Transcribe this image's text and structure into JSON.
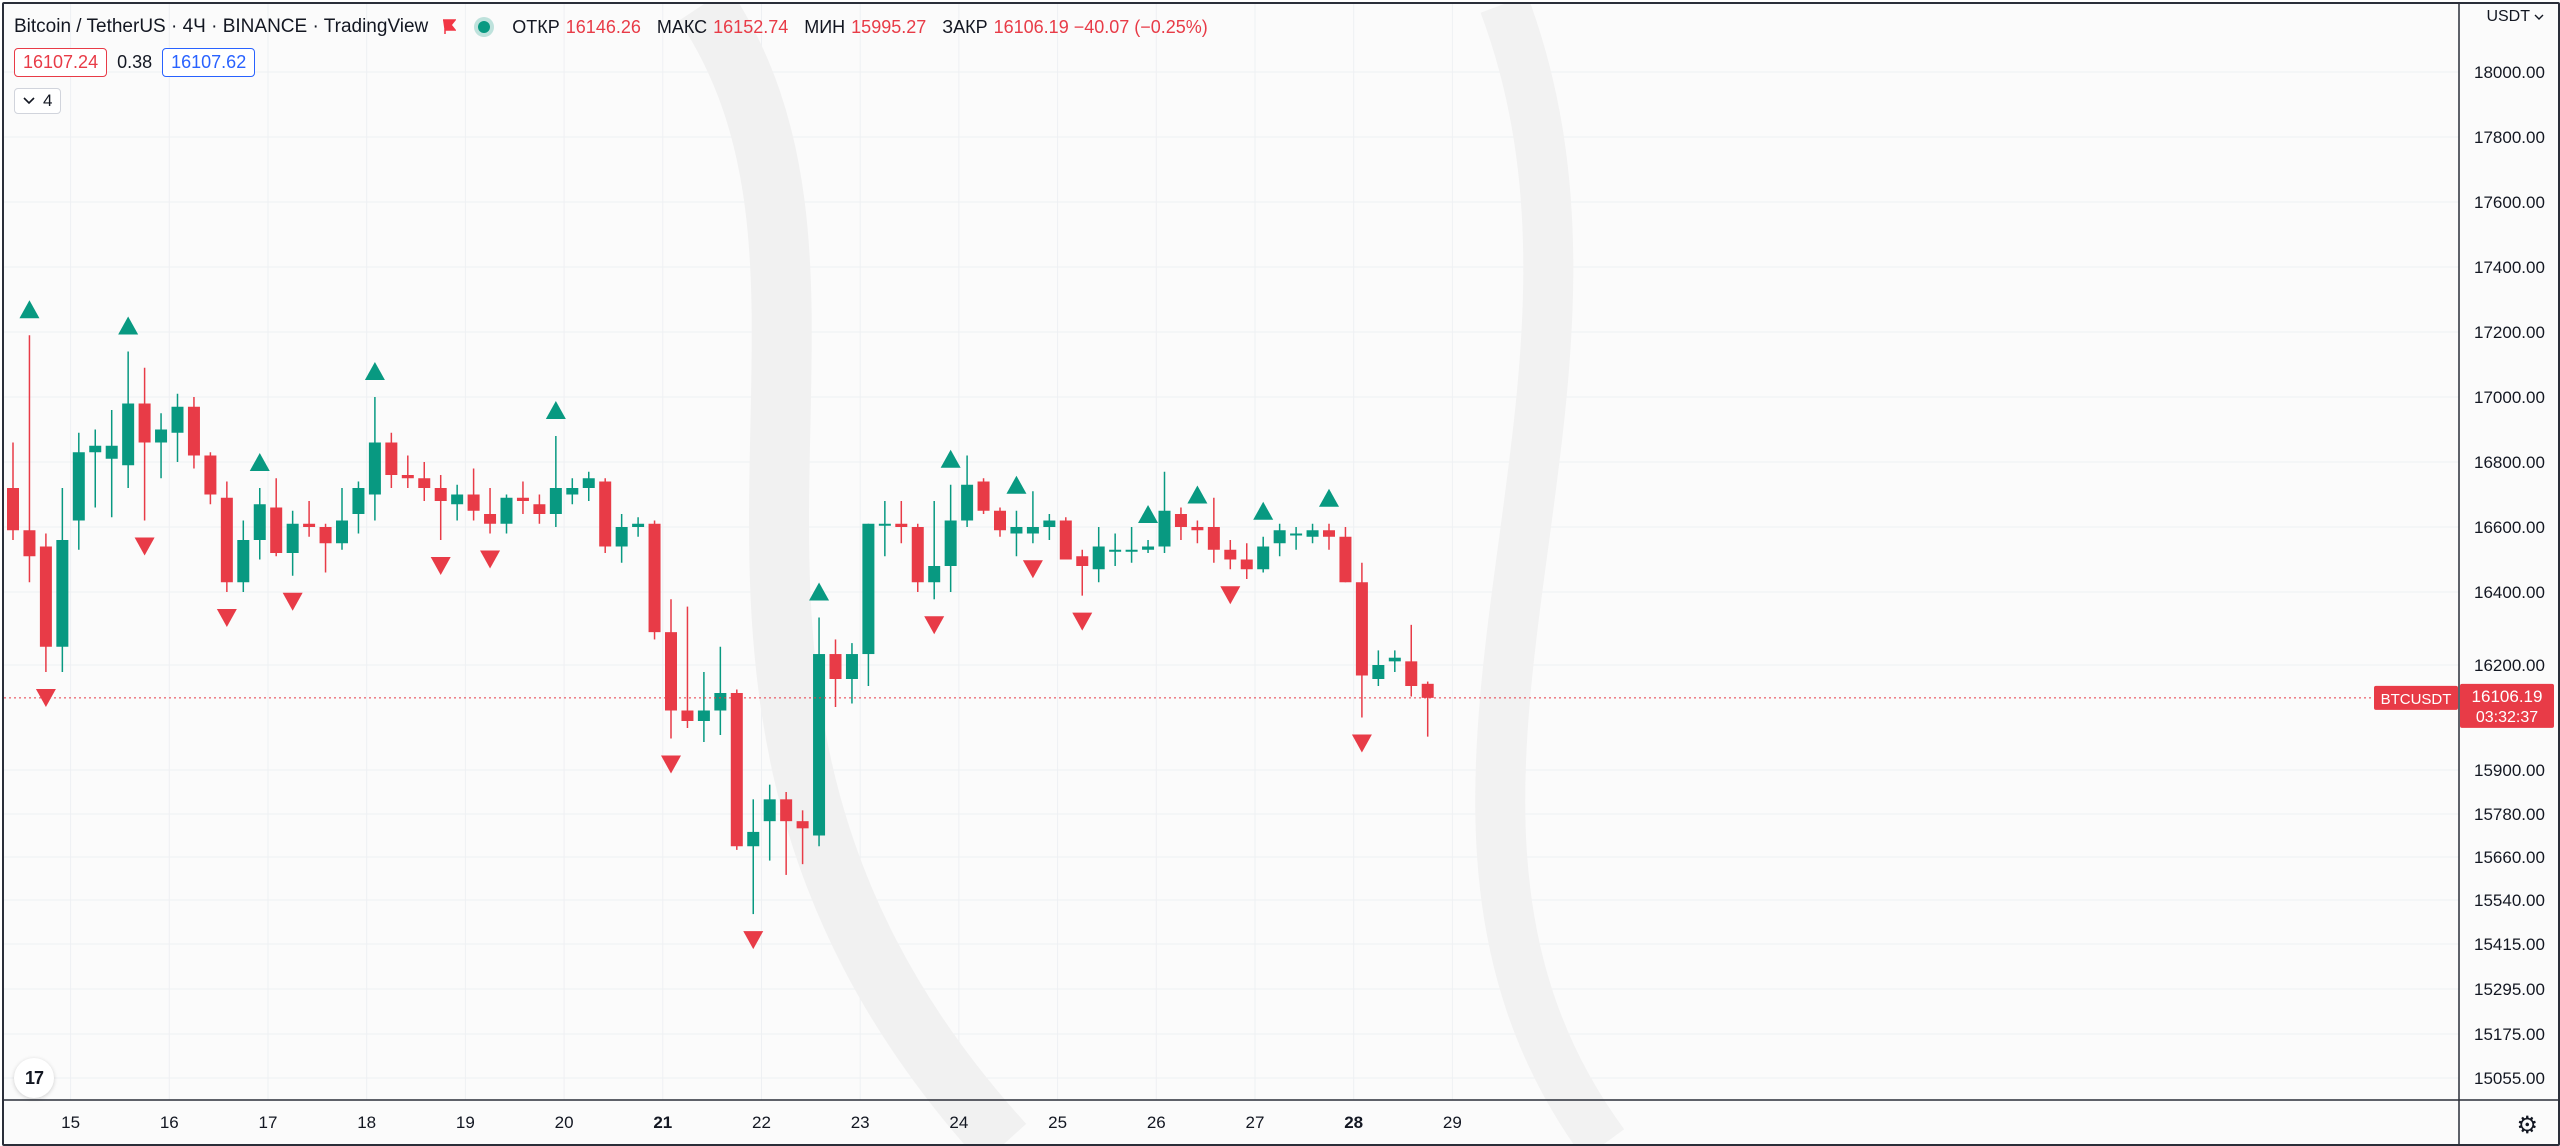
{
  "header": {
    "symbol": "Bitcoin / TetherUS · 4Ч · BINANCE · TradingView",
    "ohlc": [
      {
        "key": "ОТКР",
        "value": "16146.26"
      },
      {
        "key": "МАКС",
        "value": "16152.74"
      },
      {
        "key": "МИН",
        "value": "15995.27"
      },
      {
        "key": "ЗАКР",
        "value": "16106.19 −40.07 (−0.25%)"
      }
    ]
  },
  "quotes": {
    "bid": "16107.24",
    "spread": "0.38",
    "ask": "16107.62"
  },
  "collapse_count": "4",
  "currency": "USDT",
  "logo_text": "17",
  "colors": {
    "up": "#089981",
    "down": "#e83b47",
    "text": "#131722",
    "grid": "#eef0f3"
  },
  "icons": {
    "flag": "flag-icon",
    "settings": "gear-icon",
    "chevron": "chevron-down-icon"
  },
  "chart_data": {
    "type": "candlestick",
    "title": "",
    "xlabel": "",
    "ylabel": "",
    "interval": "4H",
    "price_label": {
      "symbol": "BTCUSDT",
      "price": "16106.19",
      "countdown": "03:32:37"
    },
    "last_price": 16106.19,
    "ylim": [
      14950,
      18100
    ],
    "y_ticks": [
      {
        "label": "18000.00",
        "value": 18000
      },
      {
        "label": "17800.00",
        "value": 17800
      },
      {
        "label": "17600.00",
        "value": 17600
      },
      {
        "label": "17400.00",
        "value": 17400
      },
      {
        "label": "17200.00",
        "value": 17200
      },
      {
        "label": "17000.00",
        "value": 17000
      },
      {
        "label": "16800.00",
        "value": 16800
      },
      {
        "label": "16600.00",
        "value": 16600
      },
      {
        "label": "16400.00",
        "value": 16400
      },
      {
        "label": "16200.00",
        "value": 16200
      },
      {
        "label": "15900.00",
        "value": 15900
      },
      {
        "label": "15780.00",
        "value": 15780
      },
      {
        "label": "15660.00",
        "value": 15660
      },
      {
        "label": "15540.00",
        "value": 15540
      },
      {
        "label": "15415.00",
        "value": 15415
      },
      {
        "label": "15295.00",
        "value": 15295
      },
      {
        "label": "15175.00",
        "value": 15175
      },
      {
        "label": "15055.00",
        "value": 15055
      }
    ],
    "x_ticks": [
      {
        "label": "15",
        "index": 3.5,
        "bold": false
      },
      {
        "label": "16",
        "index": 9.5,
        "bold": false
      },
      {
        "label": "17",
        "index": 15.5,
        "bold": false
      },
      {
        "label": "18",
        "index": 21.5,
        "bold": false
      },
      {
        "label": "19",
        "index": 27.5,
        "bold": false
      },
      {
        "label": "20",
        "index": 33.5,
        "bold": false
      },
      {
        "label": "21",
        "index": 39.5,
        "bold": true
      },
      {
        "label": "22",
        "index": 45.5,
        "bold": false
      },
      {
        "label": "23",
        "index": 51.5,
        "bold": false
      },
      {
        "label": "24",
        "index": 57.5,
        "bold": false
      },
      {
        "label": "25",
        "index": 63.5,
        "bold": false
      },
      {
        "label": "26",
        "index": 69.5,
        "bold": false
      },
      {
        "label": "27",
        "index": 75.5,
        "bold": false
      },
      {
        "label": "28",
        "index": 81.5,
        "bold": true
      },
      {
        "label": "29",
        "index": 87.5,
        "bold": false
      }
    ],
    "candles": [
      [
        16720,
        16860,
        16560,
        16590
      ],
      [
        16590,
        17190,
        16430,
        16510
      ],
      [
        16540,
        16580,
        16180,
        16250
      ],
      [
        16250,
        16720,
        16180,
        16560
      ],
      [
        16620,
        16890,
        16530,
        16830
      ],
      [
        16830,
        16900,
        16660,
        16850
      ],
      [
        16810,
        16960,
        16630,
        16850
      ],
      [
        16790,
        17140,
        16720,
        16980
      ],
      [
        16980,
        17090,
        16620,
        16860
      ],
      [
        16860,
        16950,
        16750,
        16900
      ],
      [
        16890,
        17010,
        16800,
        16970
      ],
      [
        16970,
        17000,
        16780,
        16820
      ],
      [
        16820,
        16830,
        16670,
        16700
      ],
      [
        16690,
        16740,
        16400,
        16430
      ],
      [
        16430,
        16620,
        16400,
        16560
      ],
      [
        16560,
        16720,
        16500,
        16670
      ],
      [
        16660,
        16750,
        16510,
        16520
      ],
      [
        16520,
        16650,
        16450,
        16610
      ],
      [
        16610,
        16680,
        16570,
        16600
      ],
      [
        16600,
        16610,
        16460,
        16550
      ],
      [
        16550,
        16720,
        16530,
        16620
      ],
      [
        16640,
        16740,
        16580,
        16720
      ],
      [
        16700,
        17000,
        16620,
        16860
      ],
      [
        16860,
        16890,
        16720,
        16760
      ],
      [
        16760,
        16820,
        16720,
        16750
      ],
      [
        16750,
        16800,
        16680,
        16720
      ],
      [
        16720,
        16760,
        16560,
        16680
      ],
      [
        16670,
        16730,
        16620,
        16700
      ],
      [
        16700,
        16780,
        16620,
        16650
      ],
      [
        16640,
        16720,
        16580,
        16610
      ],
      [
        16610,
        16700,
        16580,
        16690
      ],
      [
        16690,
        16740,
        16640,
        16680
      ],
      [
        16670,
        16700,
        16610,
        16640
      ],
      [
        16640,
        16880,
        16600,
        16720
      ],
      [
        16700,
        16750,
        16670,
        16720
      ],
      [
        16720,
        16770,
        16680,
        16750
      ],
      [
        16740,
        16750,
        16520,
        16540
      ],
      [
        16540,
        16640,
        16490,
        16600
      ],
      [
        16600,
        16630,
        16570,
        16610
      ],
      [
        16610,
        16620,
        16270,
        16290
      ],
      [
        16290,
        16380,
        15990,
        16070
      ],
      [
        16070,
        16360,
        16020,
        16040
      ],
      [
        16040,
        16180,
        15980,
        16070
      ],
      [
        16070,
        16250,
        16000,
        16120
      ],
      [
        16120,
        16130,
        15680,
        15690
      ],
      [
        15690,
        15820,
        15500,
        15730
      ],
      [
        15760,
        15860,
        15650,
        15820
      ],
      [
        15820,
        15840,
        15610,
        15760
      ],
      [
        15760,
        15790,
        15640,
        15740
      ],
      [
        15720,
        16330,
        15690,
        16230
      ],
      [
        16230,
        16270,
        16080,
        16160
      ],
      [
        16160,
        16260,
        16090,
        16230
      ],
      [
        16230,
        16610,
        16140,
        16610
      ],
      [
        16610,
        16680,
        16510,
        16610
      ],
      [
        16610,
        16680,
        16550,
        16600
      ],
      [
        16600,
        16610,
        16400,
        16430
      ],
      [
        16430,
        16680,
        16380,
        16480
      ],
      [
        16480,
        16730,
        16400,
        16620
      ],
      [
        16620,
        16820,
        16600,
        16730
      ],
      [
        16740,
        16750,
        16640,
        16650
      ],
      [
        16650,
        16660,
        16570,
        16590
      ],
      [
        16580,
        16650,
        16510,
        16600
      ],
      [
        16580,
        16710,
        16550,
        16600
      ],
      [
        16600,
        16640,
        16560,
        16620
      ],
      [
        16620,
        16630,
        16500,
        16500
      ],
      [
        16510,
        16530,
        16390,
        16480
      ],
      [
        16470,
        16600,
        16430,
        16540
      ],
      [
        16530,
        16580,
        16480,
        16530
      ],
      [
        16530,
        16600,
        16490,
        16530
      ],
      [
        16530,
        16560,
        16520,
        16540
      ],
      [
        16540,
        16770,
        16520,
        16650
      ],
      [
        16640,
        16660,
        16560,
        16600
      ],
      [
        16600,
        16620,
        16550,
        16590
      ],
      [
        16600,
        16690,
        16490,
        16530
      ],
      [
        16530,
        16560,
        16470,
        16500
      ],
      [
        16500,
        16550,
        16440,
        16470
      ],
      [
        16470,
        16570,
        16460,
        16540
      ],
      [
        16550,
        16610,
        16510,
        16590
      ],
      [
        16580,
        16600,
        16530,
        16580
      ],
      [
        16570,
        16610,
        16550,
        16590
      ],
      [
        16590,
        16610,
        16530,
        16570
      ],
      [
        16570,
        16600,
        16430,
        16430
      ],
      [
        16430,
        16490,
        16050,
        16170
      ],
      [
        16160,
        16240,
        16140,
        16200
      ],
      [
        16210,
        16240,
        16180,
        16220
      ],
      [
        16210,
        16310,
        16110,
        16140
      ],
      [
        16146.26,
        16152.74,
        15995.27,
        16106.19
      ]
    ],
    "markers_up": [
      1,
      7,
      15,
      22,
      33,
      49,
      57,
      61,
      69,
      72,
      76,
      80
    ],
    "markers_down": [
      2,
      8,
      13,
      17,
      26,
      29,
      40,
      45,
      56,
      62,
      65,
      74,
      82
    ]
  }
}
